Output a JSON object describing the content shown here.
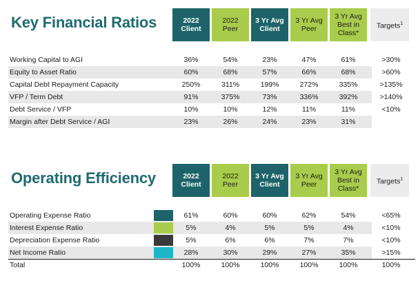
{
  "financial": {
    "title": "Key Financial Ratios",
    "headers": [
      {
        "line1": "2022",
        "line2": "Client",
        "line3": ""
      },
      {
        "line1": "2022",
        "line2": "Peer",
        "line3": ""
      },
      {
        "line1": "3 Yr Avg",
        "line2": "Client",
        "line3": ""
      },
      {
        "line1": "3 Yr Avg",
        "line2": "Peer",
        "line3": ""
      },
      {
        "line1": "3 Yr Avg",
        "line2": "Best in",
        "line3": "Class*"
      },
      {
        "line1": "Targets",
        "sup": "1"
      }
    ],
    "rows": [
      {
        "label": "Working Capital to AGI",
        "values": [
          "36%",
          "54%",
          "23%",
          "47%",
          "61%",
          ">30%"
        ]
      },
      {
        "label": "Equity to Asset Ratio",
        "values": [
          "60%",
          "68%",
          "57%",
          "66%",
          "68%",
          ">60%"
        ]
      },
      {
        "label": "Capital Debt Repayment Capacity",
        "values": [
          "250%",
          "311%",
          "199%",
          "272%",
          "335%",
          ">135%"
        ]
      },
      {
        "label": "VFP / Term Debt",
        "values": [
          "91%",
          "375%",
          "73%",
          "336%",
          "392%",
          ">140%"
        ]
      },
      {
        "label": "Debt Service / VFP",
        "values": [
          "10%",
          "10%",
          "12%",
          "11%",
          "11%",
          "<10%"
        ]
      },
      {
        "label": "Margin after Debt Service / AGI",
        "values": [
          "23%",
          "26%",
          "24%",
          "23%",
          "31%",
          ""
        ]
      }
    ]
  },
  "operating": {
    "title": "Operating Efficiency",
    "headers": [
      {
        "line1": "2022",
        "line2": "Client",
        "line3": ""
      },
      {
        "line1": "2022",
        "line2": "Peer",
        "line3": ""
      },
      {
        "line1": "3 Yr Avg",
        "line2": "Client",
        "line3": ""
      },
      {
        "line1": "3 Yr Avg",
        "line2": "Peer",
        "line3": ""
      },
      {
        "line1": "3 Yr Avg",
        "line2": "Best in",
        "line3": "Class*"
      },
      {
        "line1": "Targets",
        "sup": "1"
      }
    ],
    "rows": [
      {
        "label": "Operating Expense Ratio",
        "swatch": "#1d6369",
        "values": [
          "61%",
          "60%",
          "60%",
          "62%",
          "54%",
          "<65%"
        ]
      },
      {
        "label": "Interest Expense Ratio",
        "swatch": "#a9cc4c",
        "values": [
          "5%",
          "4%",
          "5%",
          "5%",
          "4%",
          "<10%"
        ]
      },
      {
        "label": "Depreciation Expense Ratio",
        "swatch": "#3a3a3a",
        "values": [
          "5%",
          "6%",
          "6%",
          "7%",
          "7%",
          "<10%"
        ]
      },
      {
        "label": "Net Income Ratio",
        "swatch": "#1fb5c9",
        "values": [
          "28%",
          "30%",
          "29%",
          "27%",
          "35%",
          ">15%"
        ]
      },
      {
        "label": "Total",
        "swatch": "",
        "values": [
          "100%",
          "100%",
          "100%",
          "100%",
          "100%",
          "100%"
        ]
      }
    ]
  }
}
